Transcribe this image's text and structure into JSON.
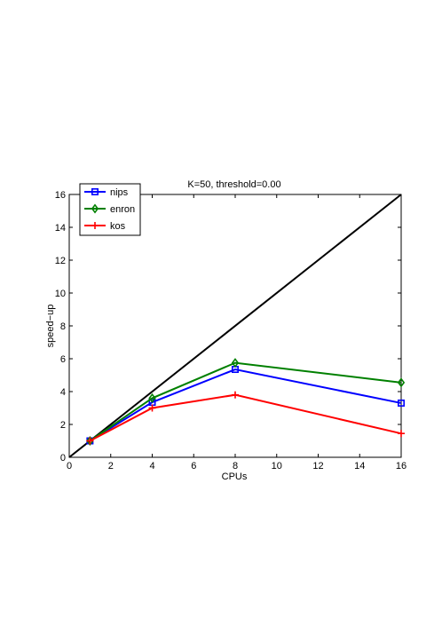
{
  "chart_data": {
    "type": "line",
    "title": "K=50, threshold=0.00",
    "xlabel": "CPUs",
    "ylabel": "speed−up",
    "xlim": [
      0,
      16
    ],
    "ylim": [
      0,
      16
    ],
    "x_ticks": [
      "0",
      "2",
      "4",
      "6",
      "8",
      "10",
      "12",
      "14",
      "16"
    ],
    "y_ticks": [
      "0",
      "2",
      "4",
      "6",
      "8",
      "10",
      "12",
      "14",
      "16"
    ],
    "grid": false,
    "legend_position": "top-left",
    "series": [
      {
        "name": "nips",
        "color": "#0000ff",
        "marker": "square",
        "x": [
          1,
          4,
          8,
          16
        ],
        "y": [
          1.0,
          3.35,
          5.35,
          3.3
        ]
      },
      {
        "name": "enron",
        "color": "#008000",
        "marker": "diamond",
        "x": [
          1,
          4,
          8,
          16
        ],
        "y": [
          1.0,
          3.6,
          5.75,
          4.55
        ]
      },
      {
        "name": "kos",
        "color": "#ff0000",
        "marker": "plus",
        "x": [
          1,
          4,
          8,
          16
        ],
        "y": [
          1.0,
          3.0,
          3.8,
          1.45
        ]
      }
    ],
    "reference_line": {
      "color": "#000000",
      "x": [
        0,
        16
      ],
      "y": [
        0,
        16
      ]
    }
  }
}
